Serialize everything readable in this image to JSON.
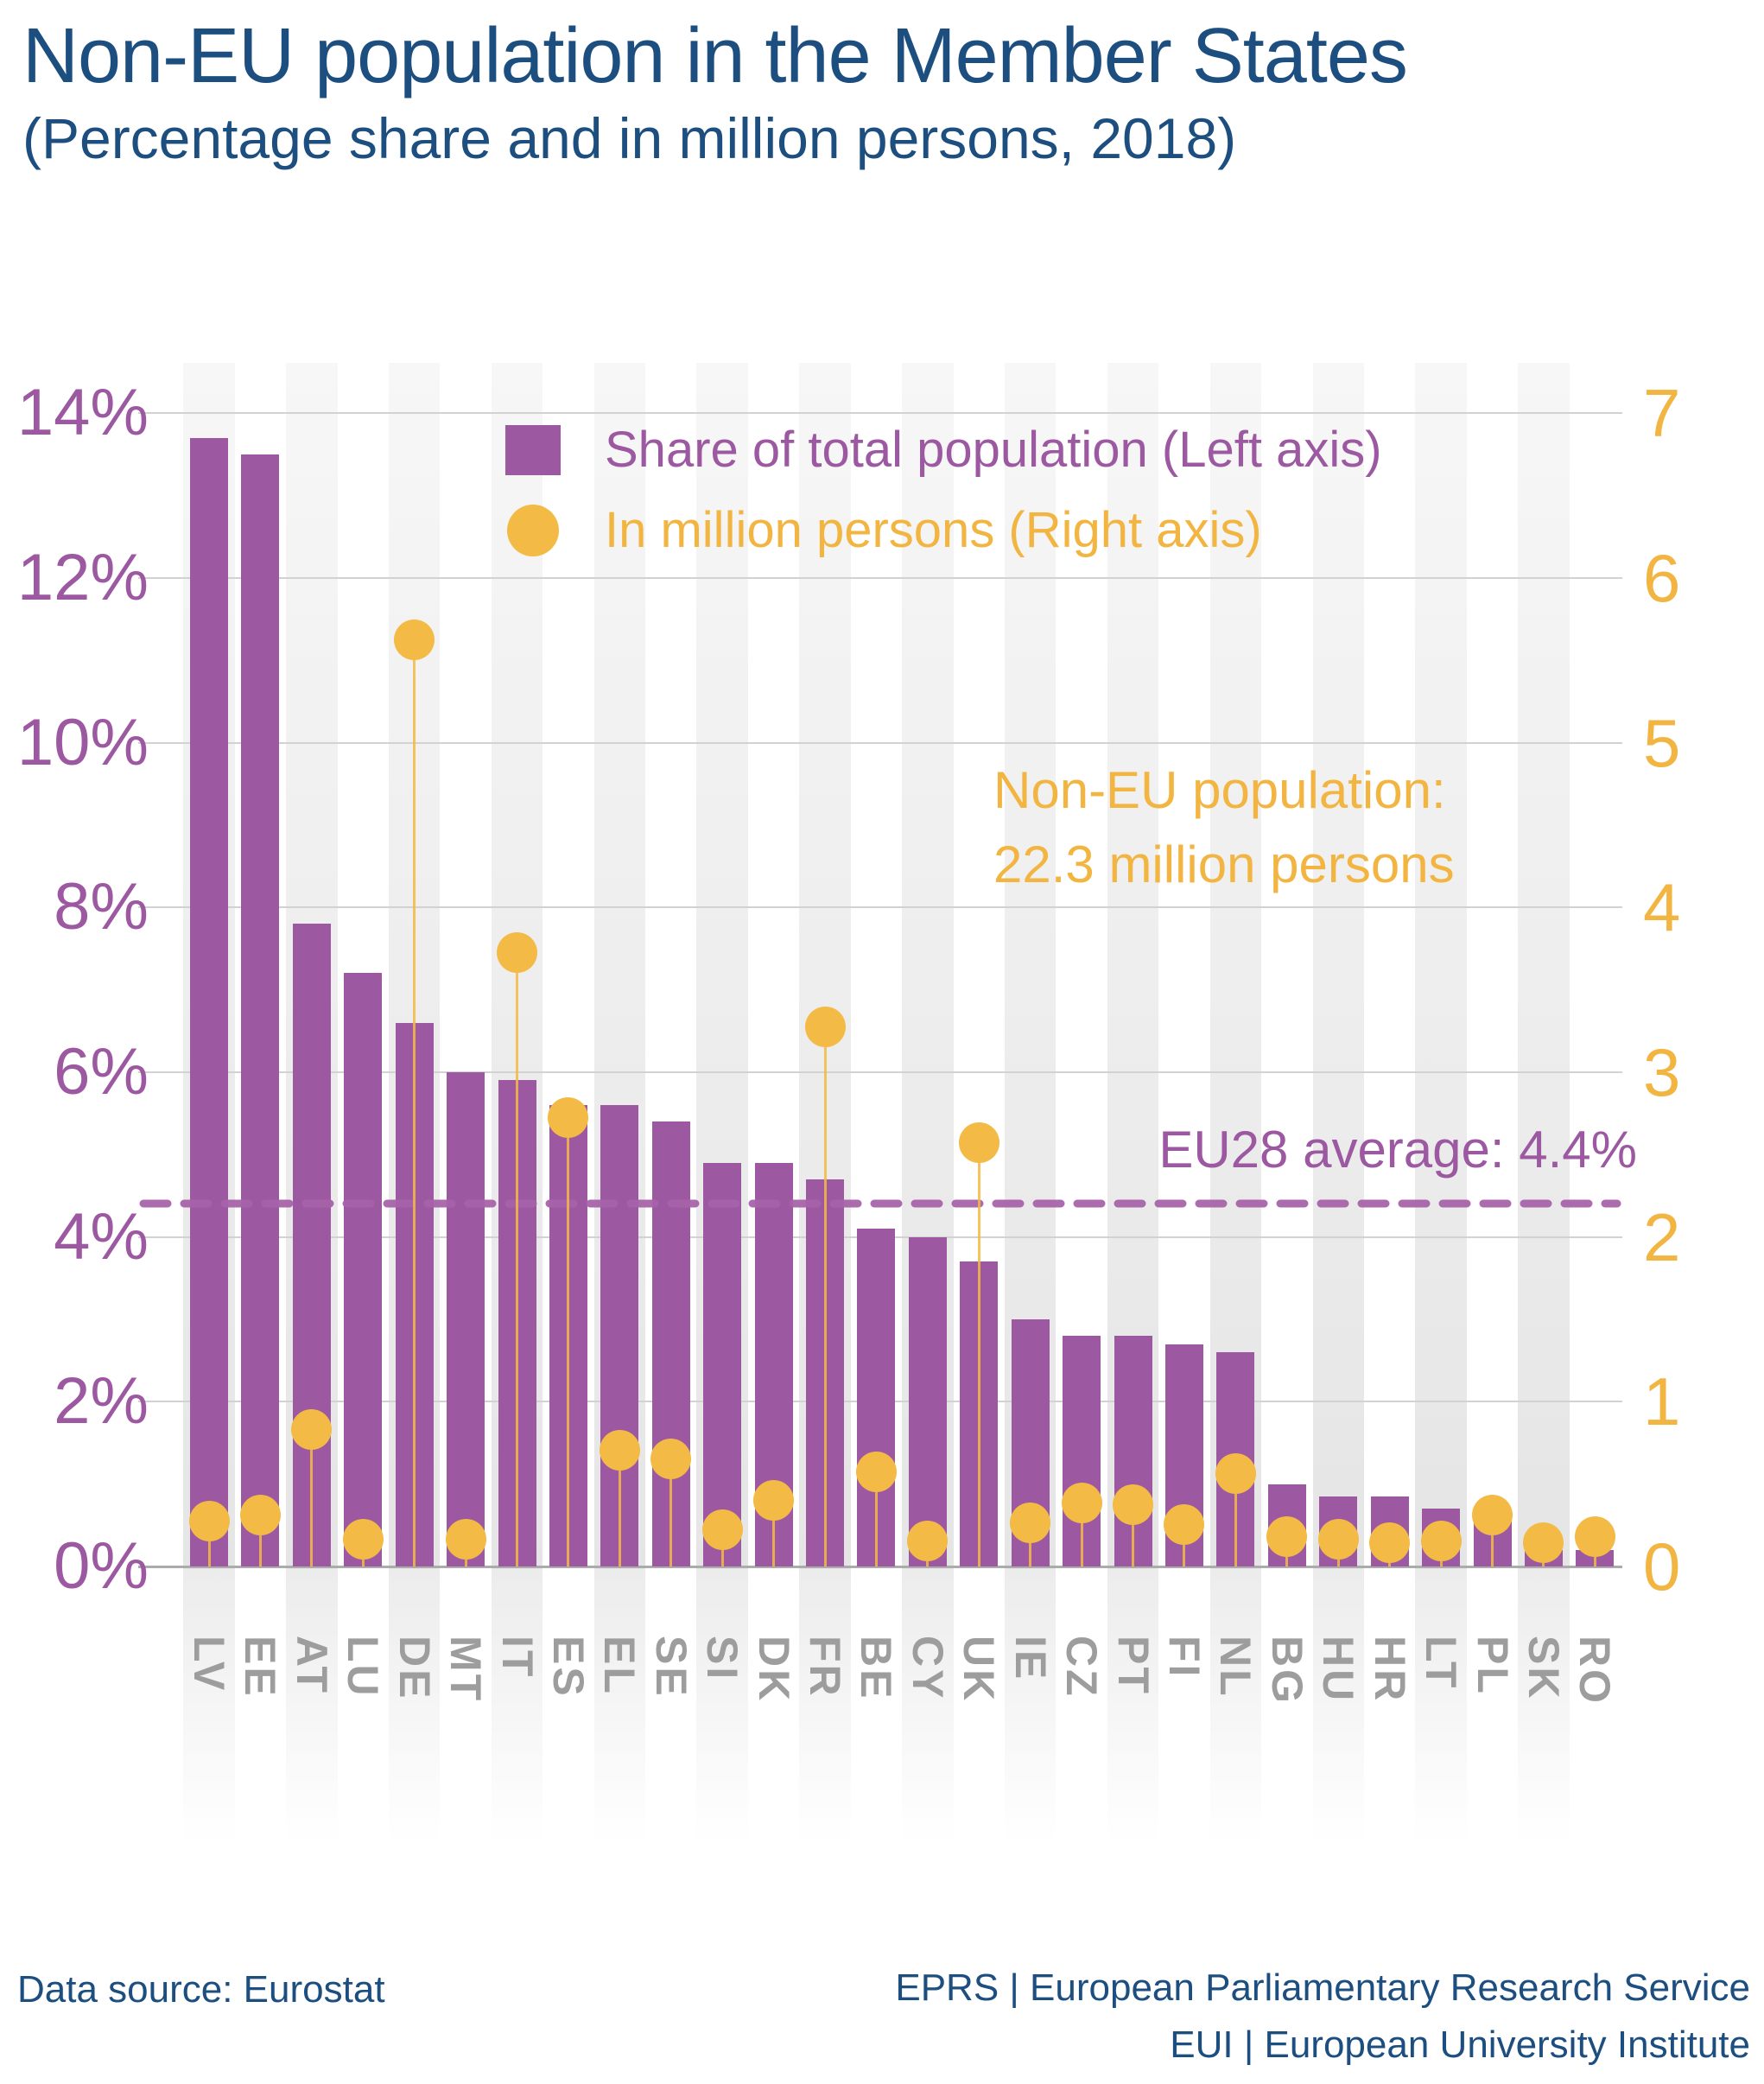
{
  "title": "Non-EU population in the Member States",
  "subtitle": "(Percentage share and in million persons, 2018)",
  "legend": {
    "share_label": "Share of total population (Left axis)",
    "millions_label": "In million persons (Right axis)"
  },
  "annotation": {
    "line1": "Non-EU population:",
    "line2": "22.3 million persons"
  },
  "average_line_label": "EU28 average: 4.4%",
  "footer": {
    "source": "Data source: Eurostat",
    "org1": "EPRS | European Parliamentary Research Service",
    "org2": "EUI | European University Institute"
  },
  "colors": {
    "title_blue": "#1C4E80",
    "purple": "#9D58A2",
    "purple_text": "#9C58A1",
    "yellow": "#F3BA45",
    "yellow_text": "#F2B541",
    "gridline": "#D2D2D2",
    "baseline": "#ABABAB",
    "xlabel_gray": "#9D9D9D"
  },
  "chart_data": {
    "type": "bar",
    "title": "Non-EU population in the Member States",
    "subtitle": "(Percentage share and in million persons, 2018)",
    "categories": [
      "LV",
      "EE",
      "AT",
      "LU",
      "DE",
      "MT",
      "IT",
      "ES",
      "EL",
      "SE",
      "SI",
      "DK",
      "FR",
      "BE",
      "CY",
      "UK",
      "IE",
      "CZ",
      "PT",
      "FI",
      "NL",
      "BG",
      "HU",
      "HR",
      "LT",
      "PL",
      "SK",
      "RO"
    ],
    "series": [
      {
        "name": "Share of total population (Left axis)",
        "axis": "left",
        "unit": "%",
        "values": [
          13.7,
          13.5,
          7.8,
          7.2,
          6.6,
          6.0,
          5.9,
          5.6,
          5.6,
          5.4,
          4.9,
          4.9,
          4.7,
          4.1,
          4.0,
          3.7,
          3.0,
          2.8,
          2.8,
          2.7,
          2.6,
          1.0,
          0.85,
          0.85,
          0.7,
          0.6,
          0.2,
          0.2
        ]
      },
      {
        "name": "In million persons (Right axis)",
        "axis": "right",
        "unit": "million persons",
        "values": [
          0.15,
          0.19,
          0.71,
          0.04,
          5.5,
          0.04,
          3.6,
          2.6,
          0.58,
          0.53,
          0.1,
          0.28,
          3.15,
          0.45,
          0.03,
          2.45,
          0.14,
          0.26,
          0.25,
          0.13,
          0.44,
          0.06,
          0.04,
          0.02,
          0.03,
          0.19,
          0.02,
          0.06
        ]
      }
    ],
    "left_axis": {
      "ticks": [
        "0%",
        "2%",
        "4%",
        "6%",
        "8%",
        "10%",
        "12%",
        "14%"
      ],
      "min": 0,
      "max": 14
    },
    "right_axis": {
      "ticks": [
        "0",
        "1",
        "2",
        "3",
        "4",
        "5",
        "6",
        "7"
      ],
      "min": 0,
      "max": 7
    },
    "average_line": {
      "label": "EU28 average: 4.4%",
      "value_pct": 4.4
    },
    "annotations": [
      "Non-EU population:",
      "22.3 million persons"
    ],
    "grid": true,
    "legend_position": "top-center"
  }
}
